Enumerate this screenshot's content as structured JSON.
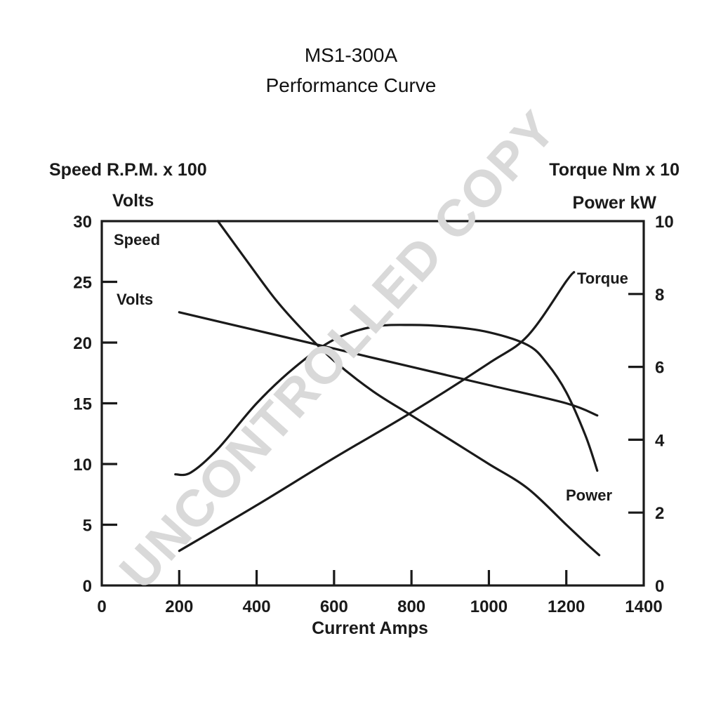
{
  "watermark": "UNCONTROLLED COPY",
  "chart_data": {
    "type": "line",
    "title": "MS1-300A",
    "subtitle": "Performance Curve",
    "xlabel": "Current Amps",
    "ylabel_left_line1": "Speed R.P.M. x 100",
    "ylabel_left_line2": "Volts",
    "ylabel_right_line1": "Torque Nm x 10",
    "ylabel_right_line2": "Power kW",
    "xlim": [
      0,
      1400
    ],
    "ylim_left": [
      0,
      30
    ],
    "ylim_right": [
      0,
      10
    ],
    "x_ticks": [
      "0",
      "200",
      "400",
      "600",
      "800",
      "1000",
      "1200",
      "1400"
    ],
    "y_left_ticks": [
      "0",
      "5",
      "10",
      "15",
      "20",
      "25",
      "30"
    ],
    "y_right_ticks": [
      "0",
      "2",
      "4",
      "6",
      "8",
      "10"
    ],
    "grid": false,
    "series": [
      {
        "name": "Speed",
        "axis": "left",
        "x": [
          300,
          380,
          450,
          520,
          600,
          700,
          800,
          900,
          1000,
          1100,
          1200,
          1250,
          1285
        ],
        "values": [
          30,
          26.5,
          23.5,
          21,
          18.5,
          16,
          14,
          12,
          10,
          8,
          5,
          3.5,
          2.5
        ]
      },
      {
        "name": "Volts",
        "axis": "left",
        "x": [
          200,
          400,
          600,
          800,
          1000,
          1200,
          1280
        ],
        "values": [
          22.5,
          21,
          19.5,
          18,
          16.5,
          15,
          14
        ]
      },
      {
        "name": "Torque",
        "axis": "right",
        "x": [
          200,
          400,
          600,
          800,
          1000,
          1100,
          1200,
          1220
        ],
        "values": [
          0.95,
          2.2,
          3.5,
          4.75,
          6.1,
          6.85,
          8.35,
          8.6
        ]
      },
      {
        "name": "Power",
        "axis": "right",
        "x": [
          190,
          230,
          300,
          400,
          500,
          600,
          700,
          800,
          900,
          1000,
          1100,
          1150,
          1200,
          1250,
          1280
        ],
        "values": [
          3.05,
          3.1,
          3.75,
          5.0,
          6.0,
          6.75,
          7.1,
          7.15,
          7.1,
          6.95,
          6.6,
          6.1,
          5.3,
          4.1,
          3.15
        ]
      }
    ]
  }
}
